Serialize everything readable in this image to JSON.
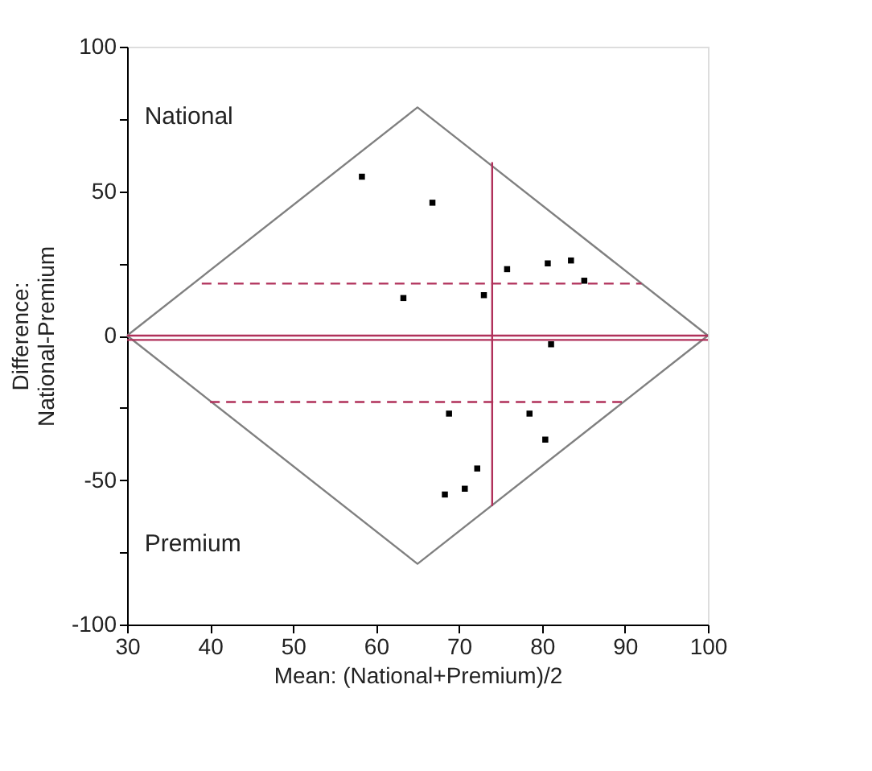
{
  "chart_data": {
    "type": "scatter",
    "xlabel": "Mean: (National+Premium)/2",
    "ylabel": "Difference:\nNational-Premium",
    "xlim": [
      30,
      100
    ],
    "xticks": [
      30,
      40,
      50,
      60,
      70,
      80,
      90,
      100
    ],
    "ylim": [
      -100,
      100
    ],
    "yticks": [
      100,
      {
        "value": 75,
        "label": null
      },
      50,
      {
        "value": 25,
        "label": null
      },
      0,
      {
        "value": -25,
        "label": null
      },
      -50,
      {
        "value": -75,
        "label": null
      },
      -100
    ],
    "grid": false,
    "marker": "square",
    "annotations": [
      "National",
      "Premium"
    ],
    "ref_lines": [
      {
        "axis": "y",
        "value": 0,
        "color": "#b0305a",
        "line_style": "solid"
      },
      {
        "axis": "y",
        "value": -1.5,
        "color": "#b0305a",
        "line_style": "solid"
      }
    ],
    "series": [
      {
        "color": "#000000",
        "x": [
          58.3,
          66.8,
          63.3,
          73.0,
          75.8,
          80.7,
          83.5,
          85.1,
          81.1,
          68.8,
          78.5,
          80.4,
          72.2,
          70.7,
          68.3
        ],
        "values": [
          55,
          46,
          13,
          14,
          23,
          25,
          26,
          19,
          -3,
          -27,
          -27,
          -36,
          -46,
          -53,
          -55
        ]
      },
      {
        "type": "line",
        "color": "#808080",
        "line_style": "solid",
        "marker": "none",
        "x": [
          30,
          65,
          100
        ],
        "values": [
          0,
          79,
          0
        ]
      },
      {
        "type": "line",
        "color": "#808080",
        "line_style": "solid",
        "marker": "none",
        "x": [
          30,
          65,
          100
        ],
        "values": [
          0,
          -79,
          0
        ]
      },
      {
        "type": "line",
        "color": "#b0305a",
        "line_style": "solid",
        "marker": "none",
        "x": [
          74,
          74
        ],
        "values": [
          -59,
          60
        ]
      },
      {
        "type": "line",
        "color": "#b0305a",
        "line_style": "dashed",
        "marker": "none",
        "x": [
          39,
          92
        ],
        "values": [
          18,
          18
        ]
      },
      {
        "type": "line",
        "color": "#b0305a",
        "line_style": "dashed",
        "marker": "none",
        "x": [
          40,
          90
        ],
        "values": [
          -23,
          -23
        ]
      }
    ]
  }
}
